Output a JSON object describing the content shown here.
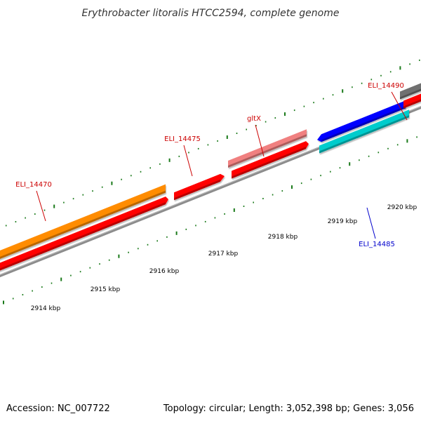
{
  "title": "Erythrobacter litoralis HTCC2594, complete genome",
  "footer": {
    "accession": "Accession: NC_007722",
    "summary": "Topology: circular; Length: 3,052,398 bp; Genes: 3,056"
  },
  "ruler": {
    "unit": "kbp",
    "labels": [
      "2914 kbp",
      "2915 kbp",
      "2916 kbp",
      "2917 kbp",
      "2918 kbp",
      "2919 kbp",
      "2920 kbp"
    ],
    "tick_color": "#1a7a1a"
  },
  "backbone_color": "#8c8c8c",
  "genes": [
    {
      "name": "ELI_14470",
      "label_color": "#cc0000",
      "color": "#ff8c00"
    },
    {
      "name": "",
      "label_color": "#cc0000",
      "color": "#ff0000"
    },
    {
      "name": "ELI_14475",
      "label_color": "#cc0000",
      "color": "#ff0000"
    },
    {
      "name": "gltX",
      "label_color": "#cc0000",
      "color": "#f08080"
    },
    {
      "name": "",
      "label_color": "#cc0000",
      "color": "#ff0000"
    },
    {
      "name": "",
      "label_color": "#0000cc",
      "color": "#0000ff"
    },
    {
      "name": "ELI_14485",
      "label_color": "#0000cc",
      "color": "#00cccc"
    },
    {
      "name": "ELI_14490",
      "label_color": "#cc0000",
      "color": "#707070"
    },
    {
      "name": "",
      "label_color": "#cc0000",
      "color": "#ff0000"
    }
  ]
}
